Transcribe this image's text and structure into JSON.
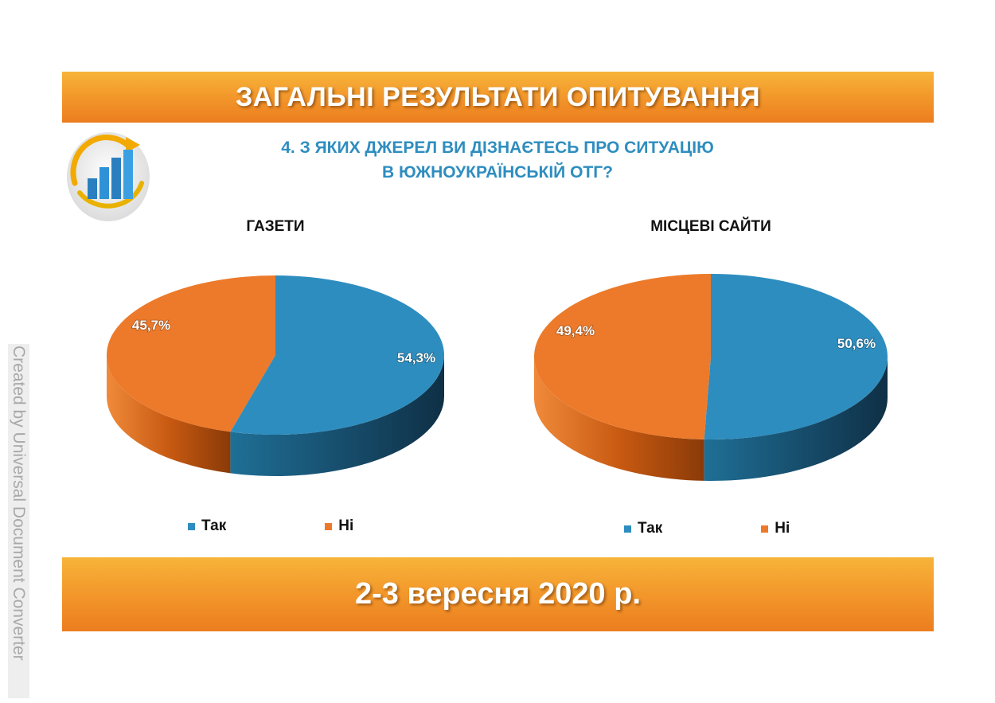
{
  "header": {
    "title": "ЗАГАЛЬНІ РЕЗУЛЬТАТИ ОПИТУВАННЯ"
  },
  "question": {
    "line1": "4. З ЯКИХ ДЖЕРЕЛ ВИ ДІЗНАЄТЕСЬ ПРО СИТУАЦІЮ",
    "line2": "В ЮЖНОУКРАЇНСЬКІЙ ОТГ?"
  },
  "footer": {
    "date": "2-3 вересня 2020 р."
  },
  "watermark": "Created by Universal Document Converter",
  "colors": {
    "yes": "#2e8dbf",
    "no": "#ec7a2a",
    "accent": "#f39a2c",
    "question": "#2e8dbf"
  },
  "chart_data": [
    {
      "type": "pie",
      "title": "ГАЗЕТИ",
      "categories": [
        "Так",
        "Ні"
      ],
      "values": [
        54.3,
        45.7
      ],
      "labels": [
        "54,3%",
        "45,7%"
      ],
      "legend": "bottom"
    },
    {
      "type": "pie",
      "title": "МІСЦЕВІ САЙТИ",
      "categories": [
        "Так",
        "Ні"
      ],
      "values": [
        50.6,
        49.4
      ],
      "labels": [
        "50,6%",
        "49,4%"
      ],
      "legend": "bottom"
    }
  ]
}
